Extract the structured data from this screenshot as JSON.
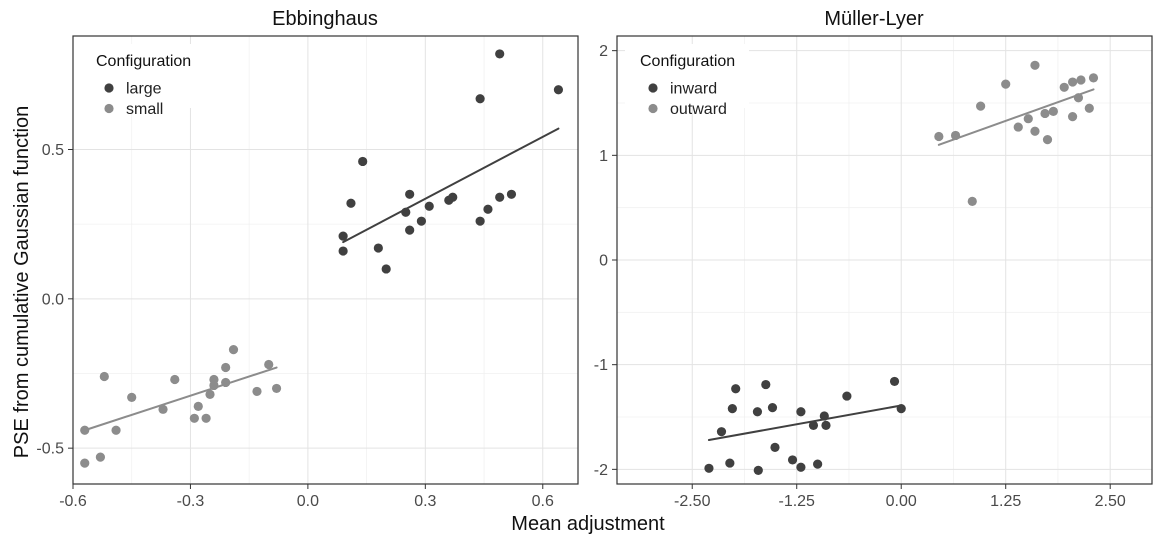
{
  "figure": {
    "ylabel": "PSE from cumulative Gaussian function",
    "xlabel": "Mean adjustment"
  },
  "chart_data": [
    {
      "type": "scatter",
      "title": "Ebbinghaus",
      "xticks": [
        -0.6,
        -0.3,
        0.0,
        0.3,
        0.6
      ],
      "xtick_labels": [
        "-0.6",
        "-0.3",
        "0.0",
        "0.3",
        "0.6"
      ],
      "yticks": [
        -0.5,
        0.0,
        0.5
      ],
      "ytick_labels": [
        "-0.5",
        "0.0",
        "0.5"
      ],
      "xlim": [
        -0.6,
        0.69
      ],
      "ylim": [
        -0.62,
        0.88
      ],
      "grid": true,
      "legend": {
        "title": "Configuration",
        "position": "top-left"
      },
      "series": [
        {
          "name": "large",
          "color": "#404040",
          "points": [
            [
              0.09,
              0.21
            ],
            [
              0.09,
              0.16
            ],
            [
              0.11,
              0.32
            ],
            [
              0.14,
              0.46
            ],
            [
              0.18,
              0.17
            ],
            [
              0.2,
              0.1
            ],
            [
              0.25,
              0.29
            ],
            [
              0.26,
              0.35
            ],
            [
              0.26,
              0.23
            ],
            [
              0.29,
              0.26
            ],
            [
              0.31,
              0.31
            ],
            [
              0.36,
              0.33
            ],
            [
              0.37,
              0.34
            ],
            [
              0.44,
              0.26
            ],
            [
              0.44,
              0.67
            ],
            [
              0.46,
              0.3
            ],
            [
              0.49,
              0.34
            ],
            [
              0.49,
              0.82
            ],
            [
              0.52,
              0.35
            ],
            [
              0.64,
              0.7
            ]
          ],
          "fit": {
            "x": [
              0.09,
              0.64
            ],
            "y": [
              0.19,
              0.57
            ]
          }
        },
        {
          "name": "small",
          "color": "#8c8c8c",
          "points": [
            [
              -0.57,
              -0.44
            ],
            [
              -0.57,
              -0.55
            ],
            [
              -0.53,
              -0.53
            ],
            [
              -0.52,
              -0.26
            ],
            [
              -0.49,
              -0.44
            ],
            [
              -0.45,
              -0.33
            ],
            [
              -0.37,
              -0.37
            ],
            [
              -0.34,
              -0.27
            ],
            [
              -0.29,
              -0.4
            ],
            [
              -0.28,
              -0.36
            ],
            [
              -0.26,
              -0.4
            ],
            [
              -0.25,
              -0.32
            ],
            [
              -0.24,
              -0.27
            ],
            [
              -0.24,
              -0.29
            ],
            [
              -0.21,
              -0.23
            ],
            [
              -0.21,
              -0.28
            ],
            [
              -0.19,
              -0.17
            ],
            [
              -0.13,
              -0.31
            ],
            [
              -0.1,
              -0.22
            ],
            [
              -0.08,
              -0.3
            ]
          ],
          "fit": {
            "x": [
              -0.57,
              -0.08
            ],
            "y": [
              -0.44,
              -0.23
            ]
          }
        }
      ]
    },
    {
      "type": "scatter",
      "title": "Müller-Lyer",
      "xticks": [
        -2.5,
        -1.25,
        0.0,
        1.25,
        2.5
      ],
      "xtick_labels": [
        "-2.50",
        "-1.25",
        "0.00",
        "1.25",
        "2.50"
      ],
      "yticks": [
        -2,
        -1,
        0,
        1,
        2
      ],
      "ytick_labels": [
        "-2",
        "-1",
        "0",
        "1",
        "2"
      ],
      "xlim": [
        -3.4,
        3.0
      ],
      "ylim": [
        -2.14,
        2.14
      ],
      "grid": true,
      "legend": {
        "title": "Configuration",
        "position": "top-left"
      },
      "series": [
        {
          "name": "inward",
          "color": "#404040",
          "points": [
            [
              -2.3,
              -1.99
            ],
            [
              -2.15,
              -1.64
            ],
            [
              -2.05,
              -1.94
            ],
            [
              -2.02,
              -1.42
            ],
            [
              -1.98,
              -1.23
            ],
            [
              -1.72,
              -1.45
            ],
            [
              -1.71,
              -2.01
            ],
            [
              -1.62,
              -1.19
            ],
            [
              -1.54,
              -1.41
            ],
            [
              -1.51,
              -1.79
            ],
            [
              -1.3,
              -1.91
            ],
            [
              -1.2,
              -1.98
            ],
            [
              -1.2,
              -1.45
            ],
            [
              -1.05,
              -1.58
            ],
            [
              -1.0,
              -1.95
            ],
            [
              -0.92,
              -1.49
            ],
            [
              -0.9,
              -1.58
            ],
            [
              -0.65,
              -1.3
            ],
            [
              -0.08,
              -1.16
            ],
            [
              0.0,
              -1.42
            ]
          ],
          "fit": {
            "x": [
              -2.3,
              0.0
            ],
            "y": [
              -1.72,
              -1.39
            ]
          }
        },
        {
          "name": "outward",
          "color": "#8c8c8c",
          "points": [
            [
              0.45,
              1.18
            ],
            [
              0.65,
              1.19
            ],
            [
              0.85,
              0.56
            ],
            [
              0.95,
              1.47
            ],
            [
              1.25,
              1.68
            ],
            [
              1.4,
              1.27
            ],
            [
              1.52,
              1.35
            ],
            [
              1.6,
              1.86
            ],
            [
              1.6,
              1.23
            ],
            [
              1.72,
              1.4
            ],
            [
              1.75,
              1.15
            ],
            [
              1.82,
              1.42
            ],
            [
              1.95,
              1.65
            ],
            [
              2.05,
              1.7
            ],
            [
              2.05,
              1.37
            ],
            [
              2.12,
              1.55
            ],
            [
              2.15,
              1.72
            ],
            [
              2.25,
              1.45
            ],
            [
              2.3,
              1.74
            ]
          ],
          "fit": {
            "x": [
              0.45,
              2.3
            ],
            "y": [
              1.1,
              1.63
            ]
          }
        }
      ]
    }
  ]
}
